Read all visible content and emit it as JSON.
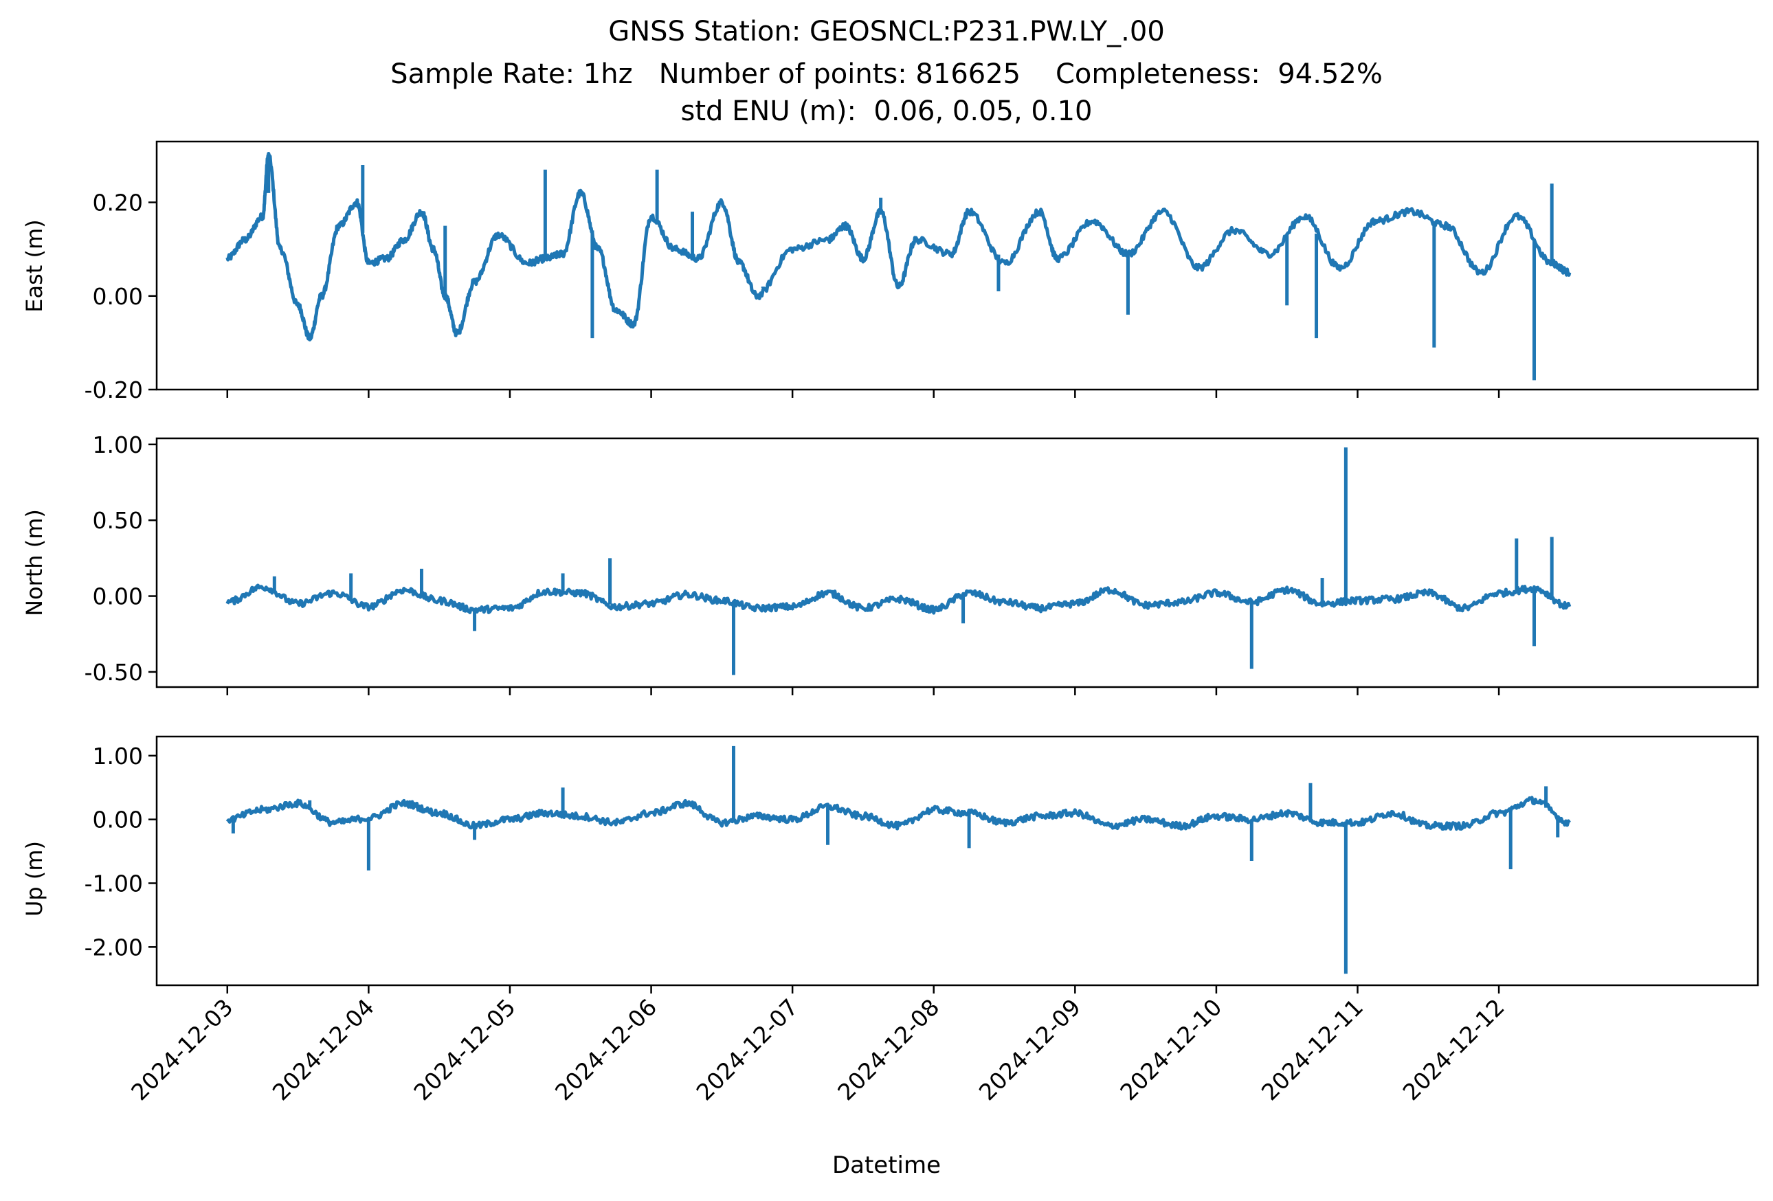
{
  "title": {
    "line1": "GNSS Station: GEOSNCL:P231.PW.LY_.00",
    "line2": "Sample Rate: 1hz   Number of points: 816625    Completeness:  94.52%",
    "line3": "std ENU (m):  0.06, 0.05, 0.10"
  },
  "colors": {
    "series": "#1f77b4",
    "axes": "#000000",
    "background": "#ffffff"
  },
  "chart_data": [
    {
      "type": "line",
      "ylabel": "East (m)",
      "xlabel": "",
      "ylim": [
        -0.2,
        0.33
      ],
      "yticks": [
        0.2,
        0.0,
        -0.2
      ],
      "ytick_labels": [
        "0.20",
        "0.00",
        "-0.20"
      ],
      "xlim": [
        "2024-12-02T12:00",
        "2024-12-13T20:00"
      ],
      "grid": false,
      "series": [
        {
          "x": [
            "2024-12-03T00:00",
            "2024-12-03T03:00",
            "2024-12-03T06:00",
            "2024-12-03T07:00",
            "2024-12-03T09:00",
            "2024-12-03T12:00",
            "2024-12-03T14:00",
            "2024-12-03T16:00",
            "2024-12-03T19:00",
            "2024-12-03T22:00",
            "2024-12-04T00:00",
            "2024-12-04T03:00",
            "2024-12-04T06:00",
            "2024-12-04T09:00",
            "2024-12-04T11:00",
            "2024-12-04T13:00",
            "2024-12-04T15:00",
            "2024-12-04T18:00",
            "2024-12-04T22:00",
            "2024-12-05T03:00",
            "2024-12-05T06:00",
            "2024-12-05T09:00",
            "2024-12-05T12:00",
            "2024-12-05T15:00",
            "2024-12-05T18:00",
            "2024-12-05T21:00",
            "2024-12-06T00:00",
            "2024-12-06T04:00",
            "2024-12-06T08:00",
            "2024-12-06T12:00",
            "2024-12-06T15:00",
            "2024-12-06T18:00",
            "2024-12-07T00:00",
            "2024-12-07T06:00",
            "2024-12-07T09:00",
            "2024-12-07T12:00",
            "2024-12-07T15:00",
            "2024-12-07T18:00",
            "2024-12-07T21:00",
            "2024-12-08T03:00",
            "2024-12-08T06:00",
            "2024-12-08T12:00",
            "2024-12-08T18:00",
            "2024-12-08T21:00",
            "2024-12-09T03:00",
            "2024-12-09T09:00",
            "2024-12-09T15:00",
            "2024-12-09T21:00",
            "2024-12-10T03:00",
            "2024-12-10T09:00",
            "2024-12-10T15:00",
            "2024-12-10T21:00",
            "2024-12-11T03:00",
            "2024-12-11T09:00",
            "2024-12-11T15:00",
            "2024-12-11T21:00",
            "2024-12-12T03:00",
            "2024-12-12T09:00",
            "2024-12-12T12:00"
          ],
          "y": [
            0.08,
            0.12,
            0.17,
            0.3,
            0.1,
            -0.02,
            -0.09,
            0.0,
            0.15,
            0.2,
            0.07,
            0.08,
            0.12,
            0.18,
            0.1,
            0.0,
            -0.08,
            0.03,
            0.13,
            0.07,
            0.08,
            0.09,
            0.22,
            0.1,
            -0.03,
            -0.06,
            0.17,
            0.1,
            0.08,
            0.2,
            0.07,
            0.0,
            0.1,
            0.12,
            0.15,
            0.08,
            0.18,
            0.02,
            0.12,
            0.09,
            0.18,
            0.07,
            0.18,
            0.08,
            0.16,
            0.09,
            0.18,
            0.06,
            0.14,
            0.09,
            0.17,
            0.06,
            0.16,
            0.18,
            0.15,
            0.05,
            0.17,
            0.07,
            0.05
          ],
          "spikes": [
            {
              "x": "2024-12-03T07:00",
              "y": 0.22
            },
            {
              "x": "2024-12-03T23:00",
              "y": 0.28
            },
            {
              "x": "2024-12-04T13:00",
              "y": 0.15
            },
            {
              "x": "2024-12-05T06:00",
              "y": 0.27
            },
            {
              "x": "2024-12-05T14:00",
              "y": -0.09
            },
            {
              "x": "2024-12-06T01:00",
              "y": 0.27
            },
            {
              "x": "2024-12-06T07:00",
              "y": 0.18
            },
            {
              "x": "2024-12-06T19:00",
              "y": 0.02
            },
            {
              "x": "2024-12-07T15:00",
              "y": 0.21
            },
            {
              "x": "2024-12-08T11:00",
              "y": 0.01
            },
            {
              "x": "2024-12-09T09:00",
              "y": -0.04
            },
            {
              "x": "2024-12-10T12:00",
              "y": -0.02
            },
            {
              "x": "2024-12-10T17:00",
              "y": -0.09
            },
            {
              "x": "2024-12-11T13:00",
              "y": -0.11
            },
            {
              "x": "2024-12-12T06:00",
              "y": -0.18
            },
            {
              "x": "2024-12-12T09:00",
              "y": 0.24
            }
          ]
        }
      ]
    },
    {
      "type": "line",
      "ylabel": "North (m)",
      "xlabel": "",
      "ylim": [
        -0.6,
        1.04
      ],
      "yticks": [
        1.0,
        0.5,
        0.0,
        -0.5
      ],
      "ytick_labels": [
        "1.00",
        "0.50",
        "0.00",
        "-0.50"
      ],
      "xlim": [
        "2024-12-02T12:00",
        "2024-12-13T20:00"
      ],
      "grid": false,
      "series": [
        {
          "x": [
            "2024-12-03T00:00",
            "2024-12-03T06:00",
            "2024-12-03T12:00",
            "2024-12-03T18:00",
            "2024-12-04T00:00",
            "2024-12-04T06:00",
            "2024-12-04T12:00",
            "2024-12-04T18:00",
            "2024-12-05T00:00",
            "2024-12-05T06:00",
            "2024-12-05T12:00",
            "2024-12-05T18:00",
            "2024-12-06T00:00",
            "2024-12-06T06:00",
            "2024-12-06T12:00",
            "2024-12-06T18:00",
            "2024-12-07T00:00",
            "2024-12-07T06:00",
            "2024-12-07T12:00",
            "2024-12-07T18:00",
            "2024-12-08T00:00",
            "2024-12-08T06:00",
            "2024-12-08T12:00",
            "2024-12-08T18:00",
            "2024-12-09T00:00",
            "2024-12-09T06:00",
            "2024-12-09T12:00",
            "2024-12-09T18:00",
            "2024-12-10T00:00",
            "2024-12-10T06:00",
            "2024-12-10T12:00",
            "2024-12-10T18:00",
            "2024-12-11T00:00",
            "2024-12-11T06:00",
            "2024-12-11T12:00",
            "2024-12-11T18:00",
            "2024-12-12T00:00",
            "2024-12-12T06:00",
            "2024-12-12T12:00"
          ],
          "y": [
            -0.04,
            0.06,
            -0.05,
            0.02,
            -0.07,
            0.04,
            -0.03,
            -0.09,
            -0.08,
            0.03,
            0.02,
            -0.07,
            -0.05,
            0.01,
            -0.03,
            -0.08,
            -0.07,
            0.02,
            -0.08,
            -0.02,
            -0.09,
            0.02,
            -0.04,
            -0.08,
            -0.05,
            0.04,
            -0.06,
            -0.04,
            0.02,
            -0.04,
            0.04,
            -0.05,
            -0.03,
            -0.02,
            0.02,
            -0.08,
            0.02,
            0.05,
            -0.07
          ],
          "spikes": [
            {
              "x": "2024-12-03T08:00",
              "y": 0.13
            },
            {
              "x": "2024-12-03T21:00",
              "y": 0.15
            },
            {
              "x": "2024-12-04T09:00",
              "y": 0.18
            },
            {
              "x": "2024-12-04T18:00",
              "y": -0.23
            },
            {
              "x": "2024-12-05T09:00",
              "y": 0.15
            },
            {
              "x": "2024-12-05T17:00",
              "y": 0.25
            },
            {
              "x": "2024-12-06T14:00",
              "y": -0.52
            },
            {
              "x": "2024-12-08T05:00",
              "y": -0.18
            },
            {
              "x": "2024-12-10T06:00",
              "y": -0.48
            },
            {
              "x": "2024-12-10T22:00",
              "y": 0.98
            },
            {
              "x": "2024-12-10T18:00",
              "y": 0.12
            },
            {
              "x": "2024-12-12T03:00",
              "y": 0.38
            },
            {
              "x": "2024-12-12T09:00",
              "y": 0.39
            },
            {
              "x": "2024-12-12T06:00",
              "y": -0.33
            }
          ]
        }
      ]
    },
    {
      "type": "line",
      "ylabel": "Up (m)",
      "xlabel": "Datetime",
      "ylim": [
        -2.6,
        1.3
      ],
      "yticks": [
        1.0,
        0.0,
        -1.0,
        -2.0
      ],
      "ytick_labels": [
        "1.00",
        "0.00",
        "-1.00",
        "-2.00"
      ],
      "xlim": [
        "2024-12-02T12:00",
        "2024-12-13T20:00"
      ],
      "xticks": [
        "2024-12-03",
        "2024-12-04",
        "2024-12-05",
        "2024-12-06",
        "2024-12-07",
        "2024-12-08",
        "2024-12-09",
        "2024-12-10",
        "2024-12-11",
        "2024-12-12"
      ],
      "grid": false,
      "series": [
        {
          "x": [
            "2024-12-03T00:00",
            "2024-12-03T06:00",
            "2024-12-03T12:00",
            "2024-12-03T18:00",
            "2024-12-04T00:00",
            "2024-12-04T06:00",
            "2024-12-04T12:00",
            "2024-12-04T18:00",
            "2024-12-05T00:00",
            "2024-12-05T06:00",
            "2024-12-05T12:00",
            "2024-12-05T18:00",
            "2024-12-06T00:00",
            "2024-12-06T06:00",
            "2024-12-06T12:00",
            "2024-12-06T18:00",
            "2024-12-07T00:00",
            "2024-12-07T06:00",
            "2024-12-07T12:00",
            "2024-12-07T18:00",
            "2024-12-08T00:00",
            "2024-12-08T06:00",
            "2024-12-08T12:00",
            "2024-12-08T18:00",
            "2024-12-09T00:00",
            "2024-12-09T06:00",
            "2024-12-09T12:00",
            "2024-12-09T18:00",
            "2024-12-10T00:00",
            "2024-12-10T06:00",
            "2024-12-10T12:00",
            "2024-12-10T18:00",
            "2024-12-11T00:00",
            "2024-12-11T06:00",
            "2024-12-11T12:00",
            "2024-12-11T18:00",
            "2024-12-12T00:00",
            "2024-12-12T06:00",
            "2024-12-12T12:00"
          ],
          "y": [
            0.0,
            0.15,
            0.25,
            -0.05,
            0.02,
            0.25,
            0.1,
            -0.1,
            0.0,
            0.1,
            0.05,
            -0.05,
            0.1,
            0.25,
            -0.05,
            0.05,
            0.0,
            0.2,
            0.05,
            -0.1,
            0.15,
            0.1,
            -0.05,
            0.05,
            0.1,
            -0.1,
            0.0,
            -0.1,
            0.05,
            0.0,
            0.1,
            -0.05,
            -0.05,
            0.1,
            -0.1,
            -0.1,
            0.1,
            0.3,
            -0.05
          ],
          "spikes": [
            {
              "x": "2024-12-03T01:00",
              "y": -0.22
            },
            {
              "x": "2024-12-03T14:00",
              "y": 0.3
            },
            {
              "x": "2024-12-04T00:00",
              "y": -0.8
            },
            {
              "x": "2024-12-04T18:00",
              "y": -0.32
            },
            {
              "x": "2024-12-05T09:00",
              "y": 0.5
            },
            {
              "x": "2024-12-06T14:00",
              "y": 1.15
            },
            {
              "x": "2024-12-07T06:00",
              "y": -0.4
            },
            {
              "x": "2024-12-08T06:00",
              "y": -0.45
            },
            {
              "x": "2024-12-10T06:00",
              "y": -0.65
            },
            {
              "x": "2024-12-10T16:00",
              "y": 0.57
            },
            {
              "x": "2024-12-10T22:00",
              "y": -2.42
            },
            {
              "x": "2024-12-12T02:00",
              "y": -0.78
            },
            {
              "x": "2024-12-12T08:00",
              "y": 0.52
            },
            {
              "x": "2024-12-12T10:00",
              "y": -0.28
            }
          ]
        }
      ]
    }
  ]
}
